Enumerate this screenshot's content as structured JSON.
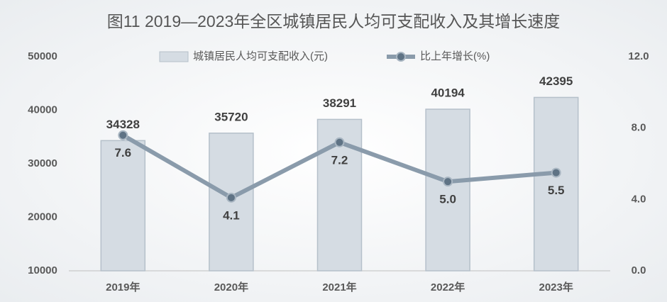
{
  "chart_data": {
    "type": "bar",
    "title": "图11  2019—2023年全区城镇居民人均可支配收入及其增长速度",
    "categories": [
      "2019年",
      "2020年",
      "2021年",
      "2022年",
      "2023年"
    ],
    "series": [
      {
        "name": "城镇居民人均可支配收入(元)",
        "type": "bar",
        "color": "#d5dce3",
        "values": [
          34328,
          35720,
          38291,
          40194,
          42395
        ]
      },
      {
        "name": "比上年增长(%)",
        "type": "line",
        "axis": "y2",
        "color": "#8a9bab",
        "values": [
          7.6,
          4.1,
          7.2,
          5.0,
          5.5
        ],
        "value_labels": [
          "7.6",
          "4.1",
          "7.2",
          "5.0",
          "5.5"
        ]
      }
    ],
    "ylim": [
      10000,
      50000
    ],
    "yticks": [
      10000,
      20000,
      30000,
      40000,
      50000
    ],
    "y2lim": [
      0,
      12
    ],
    "y2ticks": [
      {
        "value": 0,
        "label": "0.0"
      },
      {
        "value": 4,
        "label": "4.0"
      },
      {
        "value": 8,
        "label": "8.0"
      },
      {
        "value": 12,
        "label": "12.0"
      }
    ],
    "grid": false
  }
}
